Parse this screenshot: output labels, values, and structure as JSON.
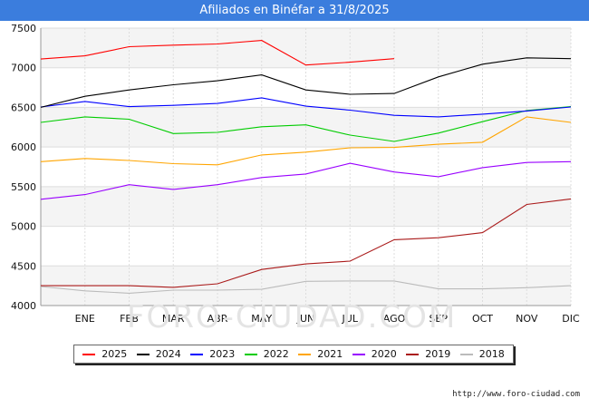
{
  "chart_data": {
    "type": "line",
    "title": "Afiliados en Binéfar a 31/8/2025",
    "categories": [
      "",
      "ENE",
      "FEB",
      "MAR",
      "ABR",
      "MAY",
      "JUN",
      "JUL",
      "AGO",
      "SEP",
      "OCT",
      "NOV",
      "DIC"
    ],
    "ylim": [
      4000,
      7500
    ],
    "yticks": [
      4000,
      4500,
      5000,
      5500,
      6000,
      6500,
      7000,
      7500
    ],
    "xlabel": "",
    "ylabel": "",
    "grid": true,
    "legend_position": "bottom",
    "series": [
      {
        "name": "2025",
        "color": "#ff0000",
        "values": [
          7110,
          7150,
          7265,
          7285,
          7300,
          7345,
          7035,
          7070,
          7115,
          null,
          null,
          null,
          null
        ]
      },
      {
        "name": "2024",
        "color": "#000000",
        "values": [
          6500,
          6640,
          6720,
          6785,
          6835,
          6910,
          6720,
          6665,
          6675,
          6885,
          7045,
          7125,
          7115
        ]
      },
      {
        "name": "2023",
        "color": "#0000ff",
        "values": [
          6505,
          6575,
          6510,
          6525,
          6550,
          6620,
          6515,
          6465,
          6400,
          6380,
          6415,
          6455,
          6505
        ]
      },
      {
        "name": "2022",
        "color": "#00cc00",
        "values": [
          6310,
          6380,
          6350,
          6170,
          6185,
          6255,
          6280,
          6150,
          6070,
          6175,
          6320,
          6460,
          6510
        ]
      },
      {
        "name": "2021",
        "color": "#ffa500",
        "values": [
          5815,
          5855,
          5830,
          5790,
          5775,
          5900,
          5935,
          5990,
          5995,
          6035,
          6060,
          6380,
          6310
        ]
      },
      {
        "name": "2020",
        "color": "#9900ff",
        "values": [
          5340,
          5400,
          5525,
          5465,
          5525,
          5615,
          5660,
          5795,
          5685,
          5625,
          5740,
          5805,
          5815
        ]
      },
      {
        "name": "2019",
        "color": "#aa1a1a",
        "values": [
          4250,
          4250,
          4250,
          4230,
          4275,
          4455,
          4525,
          4560,
          4830,
          4855,
          4920,
          5275,
          5345
        ]
      },
      {
        "name": "2018",
        "color": "#bbbbbb",
        "values": [
          4240,
          4185,
          4155,
          4195,
          4195,
          4205,
          4305,
          4310,
          4310,
          4210,
          4210,
          4225,
          4250
        ]
      }
    ],
    "source_text": "http://www.foro-ciudad.com",
    "watermark_text": "FORO-CIUDAD.COM"
  }
}
